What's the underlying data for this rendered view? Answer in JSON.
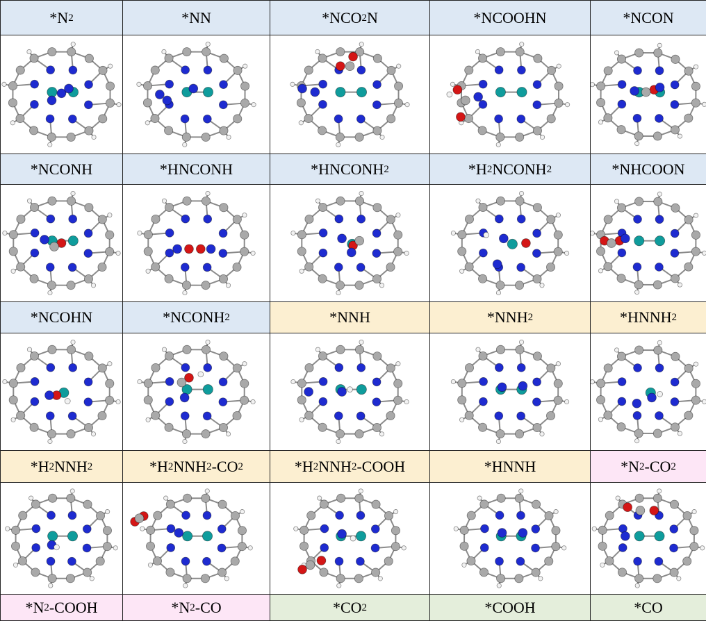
{
  "colors": {
    "blue": "#dde8f4",
    "yellow": "#fcefd1",
    "pink": "#fde6f6",
    "green": "#e4eedb",
    "carbon": "#a9a9a9",
    "nitrogen": "#1e2bd0",
    "metal": "#0f9c9c",
    "oxygen": "#d41616",
    "hydrogen": "#f2f2f2"
  },
  "rows": [
    {
      "labels": [
        {
          "text": "*N2",
          "color": "blue"
        },
        {
          "text": "*NN",
          "color": "blue"
        },
        {
          "text": "*NCO2N",
          "color": "blue"
        },
        {
          "text": "*NCOOHN",
          "color": "blue"
        },
        {
          "text": "*NCON",
          "color": "blue"
        }
      ],
      "molecules": [
        {
          "name": "N2",
          "metals": 2,
          "center": [
            [
              0.5,
              0.49,
              "N"
            ],
            [
              0.42,
              0.55,
              "N"
            ],
            [
              0.56,
              0.45,
              "N"
            ]
          ]
        },
        {
          "name": "NN",
          "metals": 2,
          "center": [
            [
              0.48,
              0.45,
              "N"
            ],
            [
              0.3,
              0.55,
              "N"
            ],
            [
              0.25,
              0.5,
              "N"
            ]
          ]
        },
        {
          "name": "NCO2N",
          "metals": 2,
          "center": [
            [
              0.52,
              0.18,
              "O"
            ],
            [
              0.44,
              0.26,
              "O"
            ],
            [
              0.5,
              0.26,
              "C"
            ],
            [
              0.2,
              0.45,
              "N"
            ],
            [
              0.28,
              0.48,
              "N"
            ]
          ]
        },
        {
          "name": "NCOOHN",
          "metals": 2,
          "center": [
            [
              0.17,
              0.46,
              "O"
            ],
            [
              0.19,
              0.69,
              "O"
            ],
            [
              0.22,
              0.55,
              "C"
            ],
            [
              0.3,
              0.52,
              "N"
            ],
            [
              0.12,
              0.5,
              "H"
            ]
          ]
        },
        {
          "name": "NCON",
          "metals": 2,
          "center": [
            [
              0.55,
              0.46,
              "O"
            ],
            [
              0.48,
              0.48,
              "C"
            ],
            [
              0.38,
              0.47,
              "N"
            ],
            [
              0.6,
              0.44,
              "N"
            ]
          ]
        }
      ]
    },
    {
      "labels": [
        {
          "text": "*NCONH",
          "color": "blue"
        },
        {
          "text": "*HNCONH",
          "color": "blue"
        },
        {
          "text": "*HNCONH2",
          "color": "blue"
        },
        {
          "text": "*H2NCONH2",
          "color": "blue"
        },
        {
          "text": "*NHCOON",
          "color": "blue"
        }
      ],
      "molecules": [
        {
          "name": "NCONH",
          "metals": 2,
          "center": [
            [
              0.5,
              0.5,
              "O"
            ],
            [
              0.44,
              0.53,
              "C"
            ],
            [
              0.36,
              0.47,
              "N"
            ]
          ]
        },
        {
          "name": "HNCONH",
          "metals": 0,
          "center": [
            [
              0.45,
              0.55,
              "O"
            ],
            [
              0.53,
              0.55,
              "O"
            ],
            [
              0.37,
              0.55,
              "N"
            ],
            [
              0.6,
              0.55,
              "N"
            ]
          ]
        },
        {
          "name": "HNCONH2",
          "metals": 1,
          "center": [
            [
              0.52,
              0.52,
              "O"
            ],
            [
              0.45,
              0.46,
              "N"
            ],
            [
              0.51,
              0.58,
              "N"
            ],
            [
              0.56,
              0.48,
              "C"
            ]
          ]
        },
        {
          "name": "H2NCONH2",
          "metals": 1,
          "center": [
            [
              0.6,
              0.5,
              "O"
            ],
            [
              0.42,
              0.68,
              "N"
            ],
            [
              0.46,
              0.46,
              "N"
            ],
            [
              0.35,
              0.43,
              "H"
            ]
          ]
        },
        {
          "name": "NHCOON",
          "metals": 2,
          "center": [
            [
              0.12,
              0.48,
              "O"
            ],
            [
              0.25,
              0.48,
              "O"
            ],
            [
              0.18,
              0.5,
              "C"
            ],
            [
              0.3,
              0.46,
              "N"
            ]
          ]
        }
      ]
    },
    {
      "labels": [
        {
          "text": "*NCOHN",
          "color": "blue"
        },
        {
          "text": "*NCONH2",
          "color": "blue"
        },
        {
          "text": "*NNH",
          "color": "yellow"
        },
        {
          "text": "*NNH2",
          "color": "yellow"
        },
        {
          "text": "*HNNH2",
          "color": "yellow"
        }
      ],
      "molecules": [
        {
          "name": "NCOHN",
          "metals": 1,
          "center": [
            [
              0.46,
              0.53,
              "O"
            ],
            [
              0.4,
              0.53,
              "N"
            ],
            [
              0.55,
              0.58,
              "H"
            ]
          ]
        },
        {
          "name": "NCONH2",
          "metals": 2,
          "center": [
            [
              0.45,
              0.38,
              "O"
            ],
            [
              0.53,
              0.35,
              "H"
            ],
            [
              0.4,
              0.42,
              "C"
            ],
            [
              0.42,
              0.55,
              "N"
            ]
          ]
        },
        {
          "name": "NNH",
          "metals": 2,
          "center": [
            [
              0.5,
              0.48,
              "H"
            ],
            [
              0.45,
              0.5,
              "N"
            ],
            [
              0.24,
              0.5,
              "N"
            ]
          ]
        },
        {
          "name": "NNH2",
          "metals": 2,
          "center": [
            [
              0.45,
              0.46,
              "N"
            ],
            [
              0.58,
              0.45,
              "N"
            ]
          ]
        },
        {
          "name": "HNNH2",
          "metals": 1,
          "center": [
            [
              0.6,
              0.52,
              "H"
            ],
            [
              0.53,
              0.55,
              "N"
            ],
            [
              0.4,
              0.6,
              "N"
            ]
          ]
        }
      ]
    },
    {
      "labels": [
        {
          "text": "*H2NNH2",
          "color": "yellow"
        },
        {
          "text": "*H2NNH2-CO2",
          "color": "yellow"
        },
        {
          "text": "*H2NNH2-COOH",
          "color": "yellow"
        },
        {
          "text": "*HNNH",
          "color": "yellow"
        },
        {
          "text": "*N2-CO2",
          "color": "pink"
        }
      ],
      "molecules": [
        {
          "name": "H2NNH2",
          "metals": 2,
          "center": [
            [
              0.42,
              0.56,
              "N"
            ],
            [
              0.46,
              0.58,
              "H"
            ]
          ]
        },
        {
          "name": "H2NNH2-CO2",
          "metals": 2,
          "center": [
            [
              0.08,
              0.35,
              "O"
            ],
            [
              0.14,
              0.3,
              "O"
            ],
            [
              0.11,
              0.32,
              "C"
            ],
            [
              0.38,
              0.45,
              "N"
            ]
          ]
        },
        {
          "name": "H2NNH2-COOH",
          "metals": 2,
          "center": [
            [
              0.2,
              0.78,
              "O"
            ],
            [
              0.32,
              0.7,
              "O"
            ],
            [
              0.25,
              0.74,
              "C"
            ],
            [
              0.45,
              0.46,
              "N"
            ],
            [
              0.52,
              0.5,
              "H"
            ]
          ]
        },
        {
          "name": "HNNH",
          "metals": 2,
          "center": [
            [
              0.45,
              0.45,
              "N"
            ],
            [
              0.58,
              0.45,
              "N"
            ]
          ]
        },
        {
          "name": "N2-CO2",
          "metals": 2,
          "center": [
            [
              0.32,
              0.22,
              "O"
            ],
            [
              0.55,
              0.25,
              "O"
            ],
            [
              0.43,
              0.25,
              "C"
            ],
            [
              0.3,
              0.48,
              "N"
            ]
          ]
        }
      ]
    }
  ],
  "last_row": [
    {
      "text": "*N2-COOH",
      "color": "pink"
    },
    {
      "text": "*N2-CO",
      "color": "pink"
    },
    {
      "text": "*CO2",
      "color": "green"
    },
    {
      "text": "*COOH",
      "color": "green"
    },
    {
      "text": "*CO",
      "color": "green"
    }
  ]
}
